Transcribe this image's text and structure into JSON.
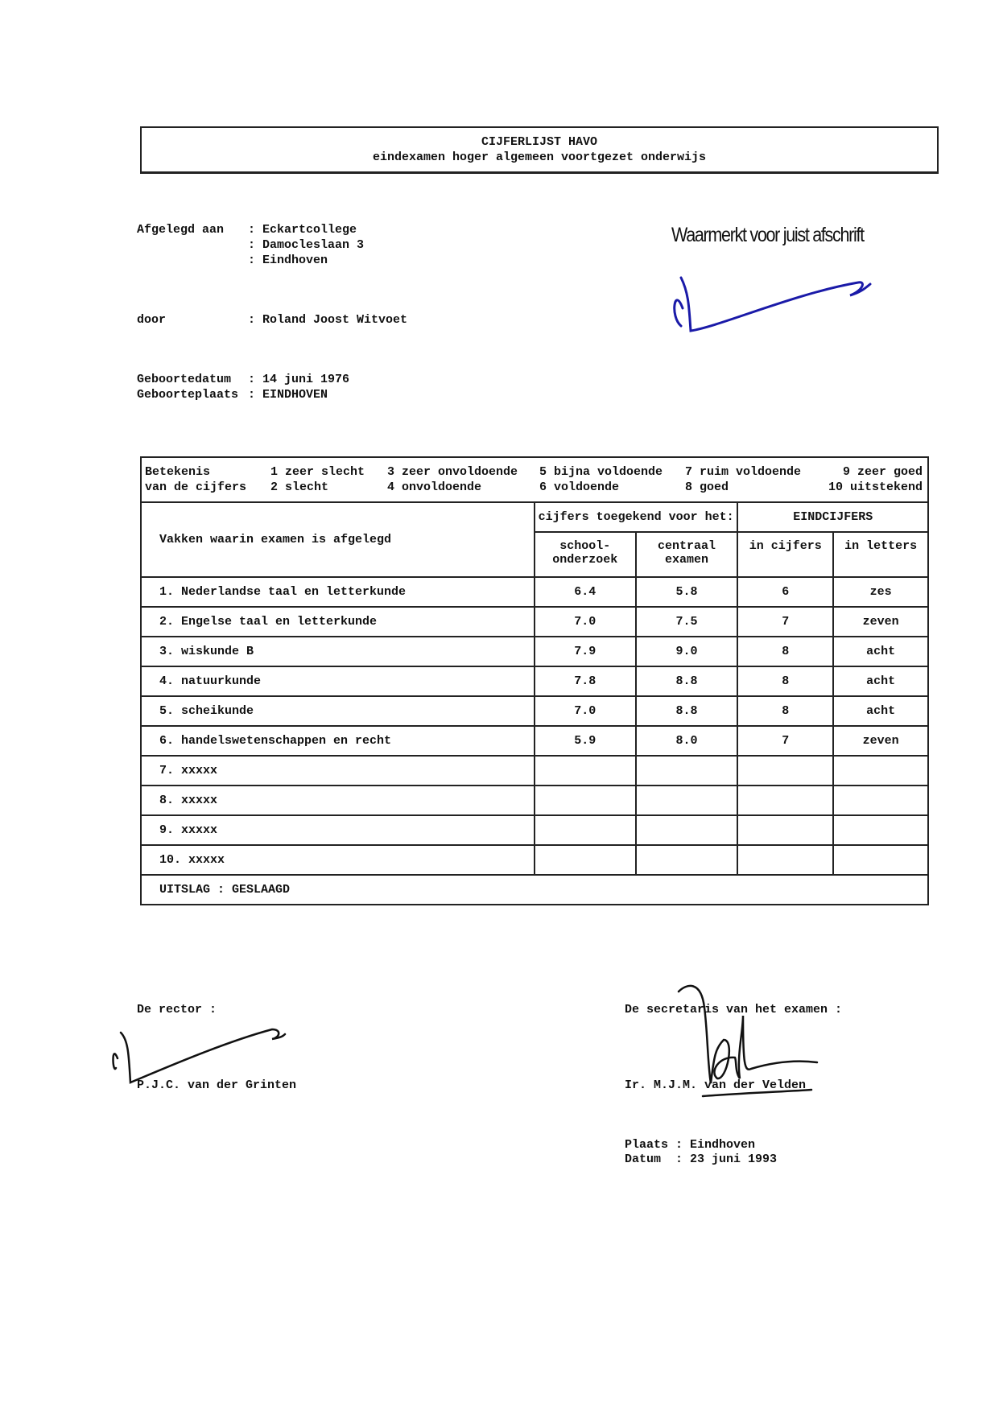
{
  "header": {
    "title": "CIJFERLIJST HAVO",
    "subtitle": "eindexamen hoger algemeen voortgezet onderwijs"
  },
  "stamp": {
    "text": "Waarmerkt voor juist afschrift",
    "signature_color": "#1a1aa8"
  },
  "school": {
    "label": "Afgelegd aan",
    "lines": [
      ": Eckartcollege",
      ": Damocleslaan 3",
      ": Eindhoven"
    ]
  },
  "student": {
    "label": "door",
    "value": ": Roland Joost Witvoet"
  },
  "birth": {
    "date_label": "Geboortedatum",
    "date_value": ": 14 juni 1976",
    "place_label": "Geboorteplaats",
    "place_value": ": EINDHOVEN"
  },
  "legend": {
    "title": [
      "Betekenis",
      "van de cijfers"
    ],
    "items": [
      [
        "1 zeer slecht",
        "2 slecht"
      ],
      [
        "3 zeer onvoldoende",
        "4 onvoldoende"
      ],
      [
        "5 bijna voldoende",
        "6 voldoende"
      ],
      [
        "7 ruim voldoende",
        "8 goed"
      ],
      [
        "9 zeer goed",
        "10 uitstekend"
      ]
    ]
  },
  "table": {
    "subjects_header": "Vakken waarin examen is afgelegd",
    "awarded_header": "cijfers toegekend voor het:",
    "final_header": "EINDCIJFERS",
    "col_school": [
      "school-",
      "onderzoek"
    ],
    "col_central": [
      "centraal",
      "examen"
    ],
    "col_digits": "in cijfers",
    "col_letters": "in letters",
    "rows": [
      {
        "subject": "1. Nederlandse taal en letterkunde",
        "school": "6.4",
        "central": "5.8",
        "final": "6",
        "letters": "zes"
      },
      {
        "subject": "2. Engelse taal en letterkunde",
        "school": "7.0",
        "central": "7.5",
        "final": "7",
        "letters": "zeven"
      },
      {
        "subject": "3. wiskunde B",
        "school": "7.9",
        "central": "9.0",
        "final": "8",
        "letters": "acht"
      },
      {
        "subject": "4. natuurkunde",
        "school": "7.8",
        "central": "8.8",
        "final": "8",
        "letters": "acht"
      },
      {
        "subject": "5. scheikunde",
        "school": "7.0",
        "central": "8.8",
        "final": "8",
        "letters": "acht"
      },
      {
        "subject": "6. handelswetenschappen en recht",
        "school": "5.9",
        "central": "8.0",
        "final": "7",
        "letters": "zeven"
      },
      {
        "subject": "7. xxxxx",
        "school": "",
        "central": "",
        "final": "",
        "letters": ""
      },
      {
        "subject": "8. xxxxx",
        "school": "",
        "central": "",
        "final": "",
        "letters": ""
      },
      {
        "subject": "9. xxxxx",
        "school": "",
        "central": "",
        "final": "",
        "letters": ""
      },
      {
        "subject": "10. xxxxx",
        "school": "",
        "central": "",
        "final": "",
        "letters": ""
      }
    ],
    "result": "UITSLAG :  GESLAAGD"
  },
  "signatures": {
    "rector_label": "De rector :",
    "rector_name": "P.J.C. van der Grinten",
    "secretary_label": "De secretaris van het examen :",
    "secretary_name": "Ir. M.J.M. van der Velden"
  },
  "footer": {
    "place": "Plaats : Eindhoven",
    "date": "Datum  : 23 juni 1993"
  }
}
